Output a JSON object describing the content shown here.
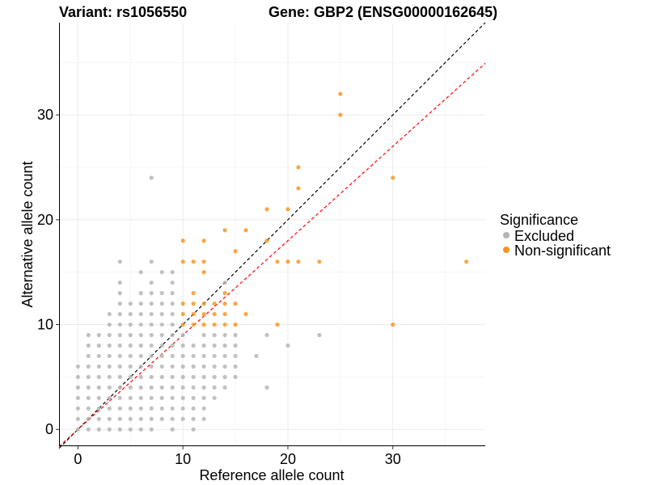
{
  "chart_data": {
    "type": "scatter",
    "title_left": "Variant: rs1056550",
    "title_right": "Gene: GBP2 (ENSG00000162645)",
    "xlabel": "Reference allele count",
    "ylabel": "Alternative allele count",
    "xlim": [
      -1.8,
      38.8
    ],
    "ylim": [
      -1.6,
      38.8
    ],
    "xticks": [
      0,
      10,
      20,
      30
    ],
    "yticks": [
      0,
      10,
      20,
      30
    ],
    "grid": true,
    "legend": {
      "title": "Significance",
      "position": "right",
      "entries": [
        {
          "label": "Excluded",
          "color": "#b3b3b3"
        },
        {
          "label": "Non-significant",
          "color": "#f7941d"
        }
      ]
    },
    "reference_lines": [
      {
        "slope": 1.0,
        "intercept": 0,
        "color": "#000000",
        "style": "dashed"
      },
      {
        "slope": 0.9,
        "intercept": 0,
        "color": "#ff0000",
        "style": "dashed"
      }
    ],
    "series": [
      {
        "name": "Excluded",
        "color": "#b3b3b3",
        "points": [
          [
            0,
            0
          ],
          [
            0,
            1
          ],
          [
            0,
            2
          ],
          [
            0,
            3
          ],
          [
            0,
            4
          ],
          [
            0,
            5
          ],
          [
            0,
            6
          ],
          [
            1,
            0
          ],
          [
            1,
            1
          ],
          [
            1,
            2
          ],
          [
            1,
            3
          ],
          [
            1,
            4
          ],
          [
            1,
            5
          ],
          [
            1,
            6
          ],
          [
            1,
            7
          ],
          [
            1,
            8
          ],
          [
            1,
            9
          ],
          [
            2,
            0
          ],
          [
            2,
            1
          ],
          [
            2,
            2
          ],
          [
            2,
            3
          ],
          [
            2,
            4
          ],
          [
            2,
            5
          ],
          [
            2,
            6
          ],
          [
            2,
            7
          ],
          [
            2,
            8
          ],
          [
            2,
            9
          ],
          [
            3,
            0
          ],
          [
            3,
            1
          ],
          [
            3,
            2
          ],
          [
            3,
            3
          ],
          [
            3,
            4
          ],
          [
            3,
            5
          ],
          [
            3,
            6
          ],
          [
            3,
            7
          ],
          [
            3,
            8
          ],
          [
            3,
            9
          ],
          [
            3,
            10
          ],
          [
            3,
            11
          ],
          [
            4,
            0
          ],
          [
            4,
            1
          ],
          [
            4,
            2
          ],
          [
            4,
            3
          ],
          [
            4,
            4
          ],
          [
            4,
            5
          ],
          [
            4,
            6
          ],
          [
            4,
            7
          ],
          [
            4,
            8
          ],
          [
            4,
            9
          ],
          [
            4,
            10
          ],
          [
            4,
            11
          ],
          [
            4,
            12
          ],
          [
            4,
            13
          ],
          [
            4,
            14
          ],
          [
            4,
            16
          ],
          [
            5,
            0
          ],
          [
            5,
            1
          ],
          [
            5,
            2
          ],
          [
            5,
            3
          ],
          [
            5,
            4
          ],
          [
            5,
            5
          ],
          [
            5,
            6
          ],
          [
            5,
            7
          ],
          [
            5,
            8
          ],
          [
            5,
            9
          ],
          [
            5,
            10
          ],
          [
            5,
            11
          ],
          [
            5,
            12
          ],
          [
            6,
            0
          ],
          [
            6,
            1
          ],
          [
            6,
            2
          ],
          [
            6,
            3
          ],
          [
            6,
            4
          ],
          [
            6,
            5
          ],
          [
            6,
            6
          ],
          [
            6,
            7
          ],
          [
            6,
            8
          ],
          [
            6,
            9
          ],
          [
            6,
            10
          ],
          [
            6,
            11
          ],
          [
            6,
            12
          ],
          [
            6,
            13
          ],
          [
            6,
            15
          ],
          [
            7,
            0
          ],
          [
            7,
            1
          ],
          [
            7,
            2
          ],
          [
            7,
            3
          ],
          [
            7,
            4
          ],
          [
            7,
            5
          ],
          [
            7,
            6
          ],
          [
            7,
            7
          ],
          [
            7,
            8
          ],
          [
            7,
            9
          ],
          [
            7,
            10
          ],
          [
            7,
            11
          ],
          [
            7,
            12
          ],
          [
            7,
            13
          ],
          [
            7,
            14
          ],
          [
            7,
            16
          ],
          [
            7,
            24
          ],
          [
            8,
            1
          ],
          [
            8,
            2
          ],
          [
            8,
            3
          ],
          [
            8,
            4
          ],
          [
            8,
            5
          ],
          [
            8,
            6
          ],
          [
            8,
            7
          ],
          [
            8,
            8
          ],
          [
            8,
            9
          ],
          [
            8,
            10
          ],
          [
            8,
            11
          ],
          [
            8,
            12
          ],
          [
            8,
            13
          ],
          [
            8,
            15
          ],
          [
            9,
            0
          ],
          [
            9,
            1
          ],
          [
            9,
            2
          ],
          [
            9,
            3
          ],
          [
            9,
            4
          ],
          [
            9,
            5
          ],
          [
            9,
            6
          ],
          [
            9,
            7
          ],
          [
            9,
            8
          ],
          [
            9,
            9
          ],
          [
            9,
            10
          ],
          [
            9,
            11
          ],
          [
            9,
            12
          ],
          [
            9,
            13
          ],
          [
            9,
            14
          ],
          [
            9,
            15
          ],
          [
            10,
            1
          ],
          [
            10,
            2
          ],
          [
            10,
            3
          ],
          [
            10,
            4
          ],
          [
            10,
            5
          ],
          [
            10,
            6
          ],
          [
            10,
            7
          ],
          [
            10,
            8
          ],
          [
            10,
            9
          ],
          [
            11,
            0
          ],
          [
            11,
            1
          ],
          [
            11,
            2
          ],
          [
            11,
            3
          ],
          [
            11,
            4
          ],
          [
            11,
            5
          ],
          [
            11,
            6
          ],
          [
            11,
            7
          ],
          [
            11,
            8
          ],
          [
            12,
            1
          ],
          [
            12,
            2
          ],
          [
            12,
            3
          ],
          [
            12,
            4
          ],
          [
            12,
            5
          ],
          [
            12,
            6
          ],
          [
            12,
            7
          ],
          [
            12,
            8
          ],
          [
            12,
            9
          ],
          [
            13,
            3
          ],
          [
            13,
            4
          ],
          [
            13,
            5
          ],
          [
            13,
            6
          ],
          [
            13,
            7
          ],
          [
            13,
            8
          ],
          [
            13,
            9
          ],
          [
            14,
            4
          ],
          [
            14,
            5
          ],
          [
            14,
            6
          ],
          [
            14,
            7
          ],
          [
            14,
            8
          ],
          [
            14,
            9
          ],
          [
            14,
            14
          ],
          [
            15,
            5
          ],
          [
            15,
            6
          ],
          [
            15,
            7
          ],
          [
            15,
            8
          ],
          [
            15,
            9
          ],
          [
            17,
            7
          ],
          [
            18,
            4
          ],
          [
            18,
            9
          ],
          [
            20,
            8
          ],
          [
            23,
            9
          ]
        ]
      },
      {
        "name": "Non-significant",
        "color": "#f7941d",
        "points": [
          [
            10,
            10
          ],
          [
            10,
            11
          ],
          [
            10,
            12
          ],
          [
            10,
            16
          ],
          [
            10,
            18
          ],
          [
            11,
            10
          ],
          [
            11,
            11
          ],
          [
            11,
            12
          ],
          [
            11,
            13
          ],
          [
            11,
            16
          ],
          [
            12,
            10
          ],
          [
            12,
            11
          ],
          [
            12,
            12
          ],
          [
            12,
            15
          ],
          [
            12,
            16
          ],
          [
            12,
            18
          ],
          [
            13,
            10
          ],
          [
            13,
            11
          ],
          [
            13,
            12
          ],
          [
            14,
            10
          ],
          [
            14,
            11
          ],
          [
            14,
            12
          ],
          [
            14,
            13
          ],
          [
            14,
            19
          ],
          [
            15,
            10
          ],
          [
            15,
            12
          ],
          [
            15,
            17
          ],
          [
            16,
            11
          ],
          [
            16,
            19
          ],
          [
            18,
            18
          ],
          [
            18,
            21
          ],
          [
            19,
            10
          ],
          [
            19,
            16
          ],
          [
            20,
            16
          ],
          [
            20,
            21
          ],
          [
            21,
            16
          ],
          [
            21,
            23
          ],
          [
            21,
            25
          ],
          [
            23,
            16
          ],
          [
            25,
            30
          ],
          [
            25,
            32
          ],
          [
            30,
            10
          ],
          [
            30,
            24
          ],
          [
            37,
            16
          ]
        ]
      }
    ]
  }
}
